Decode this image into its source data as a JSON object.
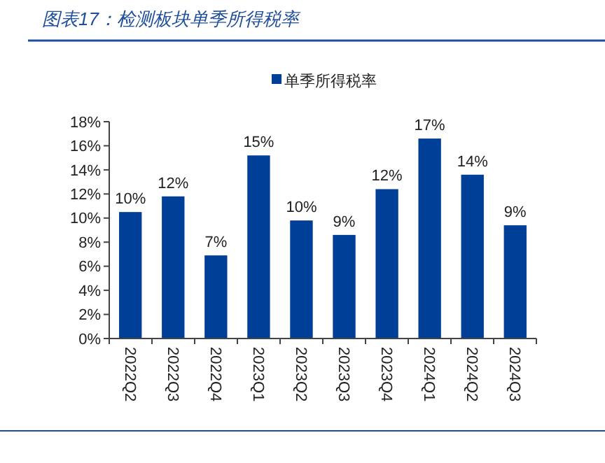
{
  "chart_data": {
    "type": "bar",
    "title": "图表17：检测板块单季所得税率",
    "categories": [
      "2022Q2",
      "2022Q3",
      "2022Q4",
      "2023Q1",
      "2023Q2",
      "2023Q3",
      "2023Q4",
      "2024Q1",
      "2024Q2",
      "2024Q3"
    ],
    "series": [
      {
        "name": "单季所得税率",
        "color": "#003f97",
        "values": [
          10.5,
          11.8,
          6.9,
          15.2,
          9.8,
          8.6,
          12.4,
          16.6,
          13.6,
          9.4
        ],
        "value_labels": [
          "10%",
          "12%",
          "7%",
          "15%",
          "10%",
          "9%",
          "12%",
          "17%",
          "14%",
          "9%"
        ]
      }
    ],
    "ylim": [
      0,
      18
    ],
    "yticks": [
      {
        "value": 0,
        "label": "0%"
      },
      {
        "value": 2,
        "label": "2%"
      },
      {
        "value": 4,
        "label": "4%"
      },
      {
        "value": 6,
        "label": "6%"
      },
      {
        "value": 8,
        "label": "8%"
      },
      {
        "value": 10,
        "label": "10%"
      },
      {
        "value": 12,
        "label": "12%"
      },
      {
        "value": 14,
        "label": "14%"
      },
      {
        "value": 16,
        "label": "16%"
      },
      {
        "value": 18,
        "label": "18%"
      }
    ],
    "grid": false,
    "legend": "top"
  }
}
